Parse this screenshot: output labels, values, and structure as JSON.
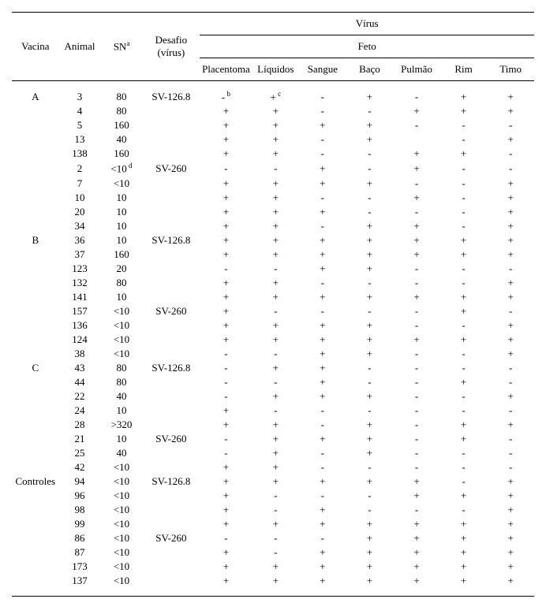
{
  "headers": {
    "vacina": "Vacina",
    "animal": "Animal",
    "sn": "SN",
    "sn_sup": "a",
    "desafio": "Desafio (vírus)",
    "virus": "Vírus",
    "feto": "Feto",
    "cols": [
      "Placentoma",
      "Líquidos",
      "Sangue",
      "Baço",
      "Pulmão",
      "Rim",
      "Timo"
    ]
  },
  "sup_b": "b",
  "sup_c": "c",
  "sup_d": "d",
  "rows": [
    {
      "vacina": "A",
      "animal": "3",
      "sn": "80",
      "desafio": "SV-126.8",
      "v": [
        "-",
        "+",
        "-",
        "+",
        "-",
        "+",
        "+"
      ],
      "sup_placentoma": "b",
      "sup_liquidos": "c"
    },
    {
      "vacina": "",
      "animal": "4",
      "sn": "80",
      "desafio": "",
      "v": [
        "+",
        "+",
        "-",
        "-",
        "+",
        "+",
        "+"
      ]
    },
    {
      "vacina": "",
      "animal": "5",
      "sn": "160",
      "desafio": "",
      "v": [
        "+",
        "+",
        "+",
        "+",
        "-",
        "-",
        "-"
      ]
    },
    {
      "vacina": "",
      "animal": "13",
      "sn": "40",
      "desafio": "",
      "v": [
        "+",
        "+",
        "-",
        "+",
        "",
        "-",
        "+"
      ]
    },
    {
      "vacina": "",
      "animal": "138",
      "sn": "160",
      "desafio": "",
      "v": [
        "+",
        "+",
        "-",
        "-",
        "+",
        "+",
        "-"
      ]
    },
    {
      "vacina": "",
      "animal": "2",
      "sn": "<10",
      "desafio": "SV-260",
      "v": [
        "-",
        "-",
        "+",
        "-",
        "+",
        "-",
        "-"
      ],
      "sup_sn": "d"
    },
    {
      "vacina": "",
      "animal": "7",
      "sn": "<10",
      "desafio": "",
      "v": [
        "+",
        "+",
        "+",
        "+",
        "-",
        "-",
        "+"
      ]
    },
    {
      "vacina": "",
      "animal": "10",
      "sn": "10",
      "desafio": "",
      "v": [
        "+",
        "+",
        "-",
        "-",
        "+",
        "-",
        "+"
      ]
    },
    {
      "vacina": "",
      "animal": "20",
      "sn": "10",
      "desafio": "",
      "v": [
        "+",
        "+",
        "+",
        "-",
        "-",
        "-",
        "+"
      ]
    },
    {
      "vacina": "",
      "animal": "34",
      "sn": "10",
      "desafio": "",
      "v": [
        "+",
        "+",
        "-",
        "+",
        "+",
        "-",
        "+"
      ]
    },
    {
      "vacina": "B",
      "animal": "36",
      "sn": "10",
      "desafio": "SV-126.8",
      "v": [
        "+",
        "+",
        "+",
        "+",
        "+",
        "+",
        "+"
      ]
    },
    {
      "vacina": "",
      "animal": "37",
      "sn": "160",
      "desafio": "",
      "v": [
        "+",
        "+",
        "+",
        "+",
        "+",
        "+",
        "+"
      ]
    },
    {
      "vacina": "",
      "animal": "123",
      "sn": "20",
      "desafio": "",
      "v": [
        "-",
        "-",
        "+",
        "+",
        "-",
        "-",
        "-"
      ]
    },
    {
      "vacina": "",
      "animal": "132",
      "sn": "80",
      "desafio": "",
      "v": [
        "+",
        "+",
        "-",
        "-",
        "-",
        "-",
        "+"
      ]
    },
    {
      "vacina": "",
      "animal": "141",
      "sn": "10",
      "desafio": "",
      "v": [
        "+",
        "+",
        "+",
        "+",
        "+",
        "+",
        "+"
      ]
    },
    {
      "vacina": "",
      "animal": "157",
      "sn": "<10",
      "desafio": "SV-260",
      "v": [
        "+",
        "-",
        "-",
        "-",
        "-",
        "+",
        "-"
      ]
    },
    {
      "vacina": "",
      "animal": "136",
      "sn": "<10",
      "desafio": "",
      "v": [
        "+",
        "+",
        "+",
        "+",
        "-",
        "-",
        "+"
      ]
    },
    {
      "vacina": "",
      "animal": "124",
      "sn": "<10",
      "desafio": "",
      "v": [
        "+",
        "+",
        "+",
        "+",
        "+",
        "+",
        "+"
      ]
    },
    {
      "vacina": "",
      "animal": "38",
      "sn": "<10",
      "desafio": "",
      "v": [
        "-",
        "-",
        "+",
        "+",
        "-",
        "-",
        "+"
      ]
    },
    {
      "vacina": "C",
      "animal": "43",
      "sn": "80",
      "desafio": "SV-126.8",
      "v": [
        "-",
        "+",
        "+",
        "-",
        "-",
        "-",
        "-"
      ]
    },
    {
      "vacina": "",
      "animal": "44",
      "sn": "80",
      "desafio": "",
      "v": [
        "-",
        "-",
        "+",
        "-",
        "-",
        "+",
        "-"
      ]
    },
    {
      "vacina": "",
      "animal": "22",
      "sn": "40",
      "desafio": "",
      "v": [
        "-",
        "+",
        "+",
        "+",
        "-",
        "-",
        "+"
      ]
    },
    {
      "vacina": "",
      "animal": "24",
      "sn": "10",
      "desafio": "",
      "v": [
        "+",
        "-",
        "-",
        "-",
        "-",
        "-",
        "-"
      ]
    },
    {
      "vacina": "",
      "animal": "28",
      "sn": ">320",
      "desafio": "",
      "v": [
        "+",
        "+",
        "-",
        "+",
        "-",
        "+",
        "+"
      ]
    },
    {
      "vacina": "",
      "animal": "21",
      "sn": "10",
      "desafio": "SV-260",
      "v": [
        "-",
        "+",
        "+",
        "+",
        "-",
        "+",
        "-"
      ]
    },
    {
      "vacina": "",
      "animal": "25",
      "sn": "40",
      "desafio": "",
      "v": [
        "-",
        "+",
        "-",
        "+",
        "-",
        "-",
        "-"
      ]
    },
    {
      "vacina": "",
      "animal": "42",
      "sn": "<10",
      "desafio": "",
      "v": [
        "+",
        "+",
        "-",
        "-",
        "-",
        "-",
        "-"
      ]
    },
    {
      "vacina": "Controles",
      "animal": "94",
      "sn": "<10",
      "desafio": "SV-126.8",
      "v": [
        "+",
        "+",
        "+",
        "+",
        "+",
        "-",
        "+"
      ]
    },
    {
      "vacina": "",
      "animal": "96",
      "sn": "<10",
      "desafio": "",
      "v": [
        "+",
        "-",
        "-",
        "-",
        "+",
        "+",
        "+"
      ]
    },
    {
      "vacina": "",
      "animal": "98",
      "sn": "<10",
      "desafio": "",
      "v": [
        "+",
        "-",
        "+",
        "-",
        "-",
        "-",
        "+"
      ]
    },
    {
      "vacina": "",
      "animal": "99",
      "sn": "<10",
      "desafio": "",
      "v": [
        "+",
        "+",
        "+",
        "+",
        "+",
        "+",
        "+"
      ]
    },
    {
      "vacina": "",
      "animal": "86",
      "sn": "<10",
      "desafio": "SV-260",
      "v": [
        "-",
        "-",
        "-",
        "+",
        "+",
        "+",
        "+"
      ]
    },
    {
      "vacina": "",
      "animal": "87",
      "sn": "<10",
      "desafio": "",
      "v": [
        "+",
        "-",
        "+",
        "+",
        "+",
        "+",
        "+"
      ]
    },
    {
      "vacina": "",
      "animal": "173",
      "sn": "<10",
      "desafio": "",
      "v": [
        "+",
        "+",
        "+",
        "+",
        "+",
        "+",
        "+"
      ]
    },
    {
      "vacina": "",
      "animal": "137",
      "sn": "<10",
      "desafio": "",
      "v": [
        "+",
        "+",
        "+",
        "+",
        "+",
        "+",
        "+"
      ]
    }
  ]
}
